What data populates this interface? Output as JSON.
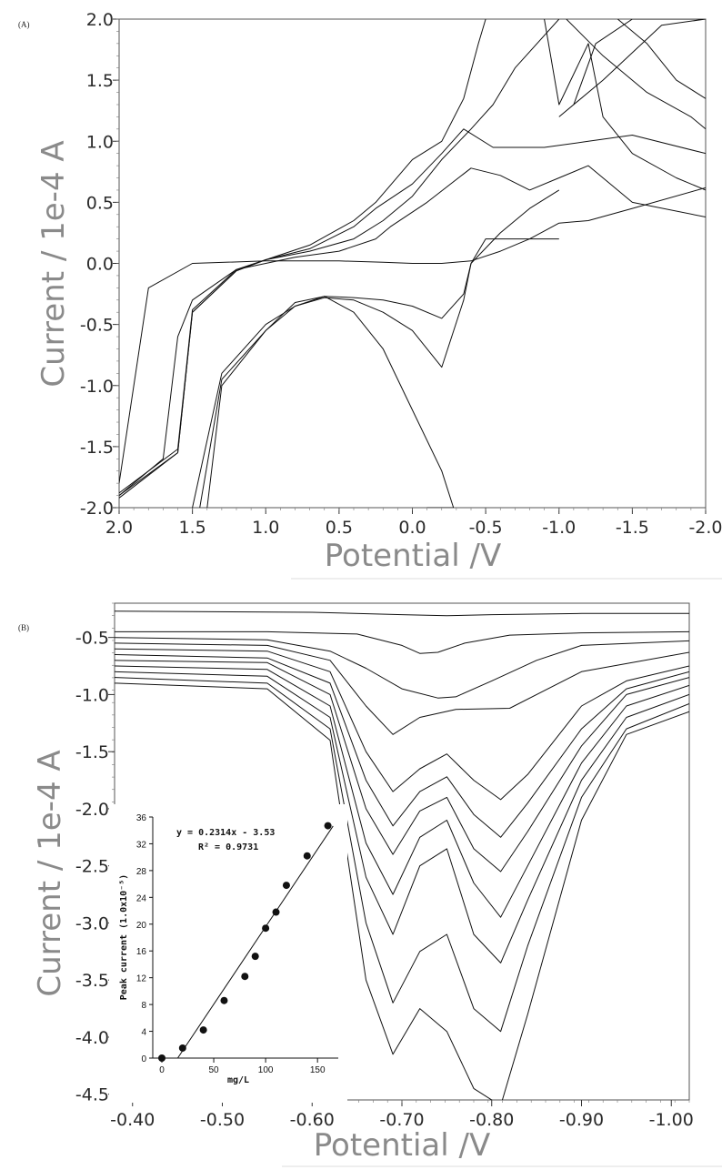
{
  "chart_data": [
    {
      "type": "line",
      "panel_label": "(A)",
      "xlabel": "Potential /V",
      "ylabel": "Current / 1e-4 A",
      "xlim": [
        2.0,
        -2.0
      ],
      "ylim": [
        -2.0,
        2.0
      ],
      "x_ticks": [
        "2.0",
        "1.5",
        "1.0",
        "0.5",
        "0.0",
        "-0.5",
        "-1.0",
        "-1.5",
        "-2.0"
      ],
      "y_ticks": [
        "2.0",
        "1.5",
        "1.0",
        "0.5",
        "0.0",
        "-0.5",
        "-1.0",
        "-1.5",
        "-2.0"
      ],
      "series": [
        {
          "x": [
            2.0,
            1.8,
            1.5,
            1.0,
            0.5,
            0.2,
            0.0,
            -0.2,
            -0.4,
            -0.6,
            -0.8,
            -1.0,
            -1.2,
            -1.5,
            -2.0
          ],
          "y": [
            -1.8,
            -0.2,
            0.0,
            0.02,
            0.02,
            0.01,
            0.0,
            0.0,
            0.02,
            0.1,
            0.2,
            0.33,
            0.35,
            0.45,
            0.62
          ]
        },
        {
          "x": [
            2.0,
            1.7,
            1.6,
            1.5,
            1.2,
            0.8,
            0.5,
            0.25,
            0.15,
            -0.1,
            -0.4,
            -0.6,
            -0.8,
            -1.0,
            -1.2,
            -1.5,
            -2.0
          ],
          "y": [
            -1.9,
            -1.6,
            -0.6,
            -0.3,
            -0.05,
            0.05,
            0.1,
            0.2,
            0.3,
            0.5,
            0.78,
            0.72,
            0.6,
            0.7,
            0.8,
            0.5,
            0.38
          ]
        },
        {
          "x": [
            2.0,
            1.6,
            1.5,
            1.2,
            1.0,
            0.7,
            0.4,
            0.2,
            0.0,
            -0.2,
            -0.4,
            -0.55,
            -0.7,
            -1.0
          ],
          "y": [
            -1.92,
            -1.55,
            -0.4,
            -0.06,
            0.03,
            0.1,
            0.2,
            0.35,
            0.55,
            0.85,
            1.1,
            1.3,
            1.6,
            2.0
          ]
        },
        {
          "x": [
            2.0,
            1.6,
            1.5,
            1.2,
            1.0,
            0.7,
            0.4,
            0.25,
            0.0,
            -0.2,
            -0.35,
            -0.55,
            -0.9,
            -1.2,
            -1.5,
            -2.0
          ],
          "y": [
            -1.88,
            -1.52,
            -0.38,
            -0.05,
            0.03,
            0.12,
            0.3,
            0.45,
            0.65,
            0.9,
            1.1,
            0.95,
            0.95,
            1.0,
            1.05,
            0.9
          ]
        },
        {
          "x": [
            2.0,
            1.6,
            1.5,
            1.2,
            1.0,
            0.7,
            0.4,
            0.25,
            0.0,
            -0.2,
            -0.35,
            -0.45,
            -0.5
          ],
          "y": [
            -1.9,
            -1.55,
            -0.4,
            -0.06,
            0.03,
            0.15,
            0.35,
            0.5,
            0.85,
            1.0,
            1.35,
            1.8,
            2.0
          ]
        },
        {
          "x": [
            1.5,
            1.3,
            1.0,
            0.8,
            0.6,
            0.4,
            0.2,
            0.0,
            -0.2,
            -0.35,
            -0.4,
            -0.5,
            -0.7,
            -1.0
          ],
          "y": [
            -2.0,
            -0.9,
            -0.5,
            -0.35,
            -0.28,
            -0.3,
            -0.4,
            -0.55,
            -0.85,
            -0.3,
            0.0,
            0.2,
            0.2,
            0.2
          ]
        },
        {
          "x": [
            1.45,
            1.3,
            1.0,
            0.8,
            0.6,
            0.4,
            0.2,
            0.0,
            -0.2,
            -0.35,
            -0.4,
            -0.6,
            -0.8,
            -1.0
          ],
          "y": [
            -2.0,
            -0.95,
            -0.55,
            -0.35,
            -0.27,
            -0.28,
            -0.3,
            -0.35,
            -0.45,
            -0.25,
            0.0,
            0.25,
            0.45,
            0.6
          ]
        },
        {
          "x": [
            1.4,
            1.3,
            1.0,
            0.8,
            0.6,
            0.4,
            0.2,
            0.0,
            -0.2,
            -0.28,
            -0.2,
            -0.1
          ],
          "y": [
            -2.0,
            -1.0,
            -0.55,
            -0.32,
            -0.27,
            -0.4,
            -0.7,
            -1.2,
            -1.7,
            -2.0,
            -2.0,
            -2.0
          ]
        },
        {
          "x": [
            -0.9,
            -1.0,
            -1.2,
            -1.3,
            -1.5,
            -1.8,
            -2.0
          ],
          "y": [
            2.0,
            1.3,
            1.8,
            1.2,
            0.9,
            0.7,
            0.6
          ]
        },
        {
          "x": [
            -1.05,
            -1.3,
            -1.6,
            -1.9,
            -2.0
          ],
          "y": [
            2.0,
            1.7,
            1.4,
            1.2,
            1.1
          ]
        },
        {
          "x": [
            -1.1,
            -1.25,
            -1.5,
            -1.8,
            -2.0
          ],
          "y": [
            1.3,
            1.8,
            2.0,
            2.0,
            2.0
          ]
        },
        {
          "x": [
            -1.0,
            -1.3,
            -1.7,
            -2.0
          ],
          "y": [
            1.2,
            1.5,
            1.95,
            2.0
          ]
        },
        {
          "x": [
            -1.4,
            -1.6,
            -1.8,
            -2.0
          ],
          "y": [
            2.0,
            1.8,
            1.5,
            1.35
          ]
        }
      ]
    },
    {
      "type": "line",
      "panel_label": "(B)",
      "xlabel": "Potential /V",
      "ylabel": "Current / 1e-4 A",
      "xlim": [
        -0.38,
        -1.02
      ],
      "ylim": [
        -4.55,
        -0.2
      ],
      "x_ticks": [
        "-0.40",
        "-0.50",
        "-0.60",
        "-0.70",
        "-0.80",
        "-0.90",
        "-1.00"
      ],
      "y_ticks": [
        "-0.5",
        "-1.0",
        "-1.5",
        "-2.0",
        "-2.5",
        "-3.0",
        "-3.5",
        "-4.0",
        "-4.5"
      ],
      "series": [
        {
          "x": [
            -0.38,
            -0.6,
            -0.7,
            -0.75,
            -0.8,
            -0.9,
            -1.02
          ],
          "y": [
            -0.27,
            -0.28,
            -0.3,
            -0.31,
            -0.3,
            -0.29,
            -0.29
          ]
        },
        {
          "x": [
            -0.38,
            -0.55,
            -0.65,
            -0.7,
            -0.72,
            -0.74,
            -0.77,
            -0.82,
            -0.9,
            -1.02
          ],
          "y": [
            -0.45,
            -0.45,
            -0.47,
            -0.57,
            -0.64,
            -0.63,
            -0.55,
            -0.48,
            -0.46,
            -0.45
          ]
        },
        {
          "x": [
            -0.38,
            -0.55,
            -0.62,
            -0.66,
            -0.7,
            -0.74,
            -0.76,
            -0.8,
            -0.85,
            -0.9,
            -1.02
          ],
          "y": [
            -0.5,
            -0.52,
            -0.62,
            -0.77,
            -0.95,
            -1.03,
            -1.02,
            -0.88,
            -0.7,
            -0.57,
            -0.53
          ]
        },
        {
          "x": [
            -0.38,
            -0.55,
            -0.62,
            -0.66,
            -0.69,
            -0.72,
            -0.76,
            -0.82,
            -0.9,
            -1.02
          ],
          "y": [
            -0.55,
            -0.57,
            -0.7,
            -1.1,
            -1.35,
            -1.2,
            -1.13,
            -1.12,
            -0.8,
            -0.63
          ]
        },
        {
          "x": [
            -0.38,
            -0.55,
            -0.62,
            -0.66,
            -0.69,
            -0.72,
            -0.75,
            -0.78,
            -0.81,
            -0.84,
            -0.9,
            -0.95,
            -1.02
          ],
          "y": [
            -0.6,
            -0.62,
            -0.8,
            -1.5,
            -1.85,
            -1.65,
            -1.52,
            -1.75,
            -1.92,
            -1.7,
            -1.1,
            -0.88,
            -0.75
          ]
        },
        {
          "x": [
            -0.38,
            -0.55,
            -0.62,
            -0.66,
            -0.69,
            -0.72,
            -0.75,
            -0.78,
            -0.81,
            -0.84,
            -0.9,
            -0.95,
            -1.02
          ],
          "y": [
            -0.65,
            -0.68,
            -0.9,
            -1.75,
            -2.15,
            -1.85,
            -1.72,
            -2.05,
            -2.25,
            -1.95,
            -1.3,
            -0.95,
            -0.8
          ]
        },
        {
          "x": [
            -0.38,
            -0.55,
            -0.62,
            -0.66,
            -0.69,
            -0.72,
            -0.75,
            -0.78,
            -0.81,
            -0.84,
            -0.9,
            -0.95,
            -1.02
          ],
          "y": [
            -0.7,
            -0.72,
            -1.0,
            -2.0,
            -2.4,
            -2.02,
            -1.9,
            -2.35,
            -2.55,
            -2.2,
            -1.45,
            -1.0,
            -0.85
          ]
        },
        {
          "x": [
            -0.38,
            -0.55,
            -0.62,
            -0.66,
            -0.69,
            -0.72,
            -0.75,
            -0.78,
            -0.81,
            -0.84,
            -0.9,
            -0.95,
            -1.02
          ],
          "y": [
            -0.75,
            -0.78,
            -1.1,
            -2.3,
            -2.75,
            -2.25,
            -2.1,
            -2.65,
            -2.95,
            -2.5,
            -1.6,
            -1.1,
            -0.92
          ]
        },
        {
          "x": [
            -0.38,
            -0.55,
            -0.62,
            -0.66,
            -0.69,
            -0.72,
            -0.75,
            -0.78,
            -0.81,
            -0.84,
            -0.9,
            -0.95,
            -1.02
          ],
          "y": [
            -0.8,
            -0.84,
            -1.2,
            -2.6,
            -3.1,
            -2.5,
            -2.35,
            -3.1,
            -3.35,
            -2.8,
            -1.75,
            -1.2,
            -1.0
          ]
        },
        {
          "x": [
            -0.38,
            -0.55,
            -0.62,
            -0.66,
            -0.69,
            -0.72,
            -0.75,
            -0.78,
            -0.81,
            -0.84,
            -0.9,
            -0.95,
            -1.02
          ],
          "y": [
            -0.85,
            -0.9,
            -1.3,
            -3.0,
            -3.7,
            -3.25,
            -3.1,
            -3.75,
            -3.95,
            -3.2,
            -1.9,
            -1.3,
            -1.08
          ]
        },
        {
          "x": [
            -0.38,
            -0.55,
            -0.62,
            -0.66,
            -0.69,
            -0.72,
            -0.75,
            -0.78,
            -0.81,
            -0.84,
            -0.9,
            -0.95,
            -1.02
          ],
          "y": [
            -0.9,
            -0.95,
            -1.4,
            -3.5,
            -4.15,
            -3.75,
            -3.95,
            -4.45,
            -4.6,
            -3.8,
            -2.1,
            -1.35,
            -1.15
          ]
        }
      ],
      "inset": {
        "type": "scatter",
        "xlabel": "mg/L",
        "ylabel": "Peak current (1.0x10⁻⁵)",
        "xlim": [
          0,
          170
        ],
        "ylim": [
          0,
          36
        ],
        "x_ticks": [
          "0",
          "50",
          "100",
          "150"
        ],
        "y_ticks": [
          "0",
          "4",
          "8",
          "12",
          "16",
          "20",
          "24",
          "28",
          "32",
          "36"
        ],
        "equation": "y = 0.2314x - 3.53",
        "r2": "R² = 0.9731",
        "points": [
          {
            "x": 0,
            "y": 0
          },
          {
            "x": 20,
            "y": 1.5
          },
          {
            "x": 40,
            "y": 4.2
          },
          {
            "x": 60,
            "y": 8.6
          },
          {
            "x": 80,
            "y": 12.2
          },
          {
            "x": 90,
            "y": 15.2
          },
          {
            "x": 100,
            "y": 19.4
          },
          {
            "x": 110,
            "y": 21.8
          },
          {
            "x": 120,
            "y": 25.8
          },
          {
            "x": 140,
            "y": 30.2
          },
          {
            "x": 160,
            "y": 34.7
          }
        ],
        "fit": {
          "slope": 0.2314,
          "intercept": -3.53
        }
      }
    }
  ]
}
